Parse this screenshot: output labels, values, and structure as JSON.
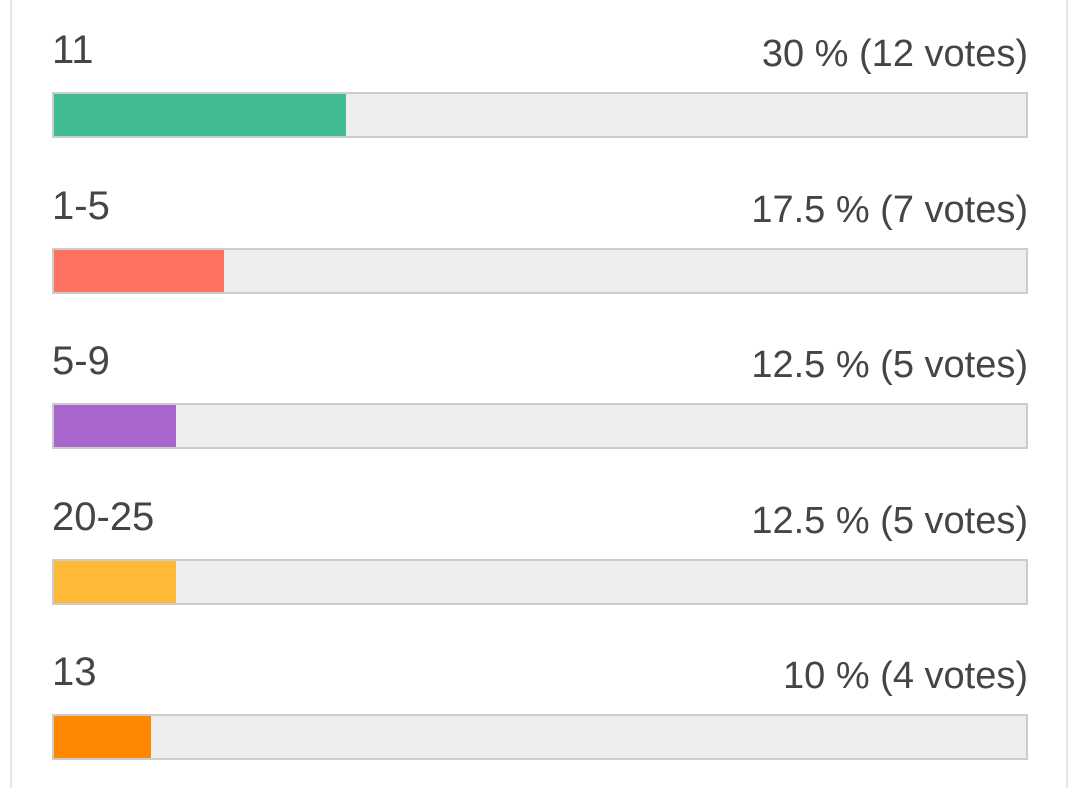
{
  "options": [
    {
      "label": "11",
      "result": "30 % (12 votes)",
      "percent": 30,
      "color": "#41bb91"
    },
    {
      "label": "1-5",
      "result": "17.5 % (7 votes)",
      "percent": 17.5,
      "color": "#ff7262"
    },
    {
      "label": "5-9",
      "result": "12.5 % (5 votes)",
      "percent": 12.5,
      "color": "#a966cc"
    },
    {
      "label": "20-25",
      "result": "12.5 % (5 votes)",
      "percent": 12.5,
      "color": "#ffb938"
    },
    {
      "label": "13",
      "result": "10 % (4 votes)",
      "percent": 10,
      "color": "#ff8800"
    }
  ]
}
